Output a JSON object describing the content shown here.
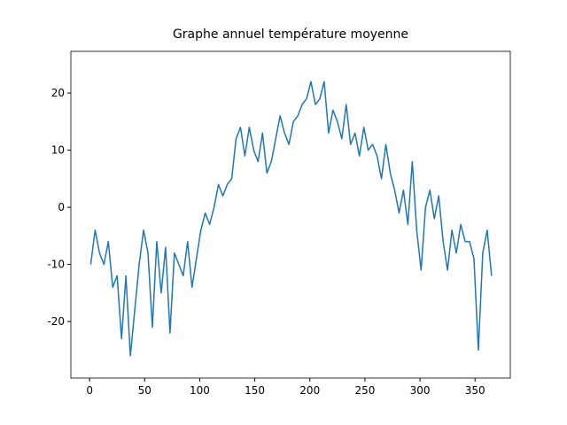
{
  "chart_data": {
    "type": "line",
    "title": "Graphe annuel température moyenne",
    "x": [
      1,
      5,
      9,
      13,
      17,
      21,
      25,
      29,
      33,
      37,
      41,
      45,
      49,
      53,
      57,
      61,
      65,
      69,
      73,
      77,
      81,
      85,
      89,
      93,
      97,
      101,
      105,
      109,
      113,
      117,
      121,
      125,
      129,
      133,
      137,
      141,
      145,
      149,
      153,
      157,
      161,
      165,
      169,
      173,
      177,
      181,
      185,
      189,
      193,
      197,
      201,
      205,
      209,
      213,
      217,
      221,
      225,
      229,
      233,
      237,
      241,
      245,
      249,
      253,
      257,
      261,
      265,
      269,
      273,
      277,
      281,
      285,
      289,
      293,
      297,
      301,
      305,
      309,
      313,
      317,
      321,
      325,
      329,
      333,
      337,
      341,
      345,
      349,
      353,
      357,
      361,
      365
    ],
    "series": [
      {
        "color": "#1f77b4",
        "values": [
          -10,
          -4,
          -8,
          -10,
          -6,
          -14,
          -12,
          -23,
          -12,
          -26,
          -18,
          -10,
          -4,
          -8,
          -21,
          -6,
          -15,
          -7,
          -22,
          -8,
          -10,
          -12,
          -6,
          -14,
          -9,
          -4,
          -1,
          -3,
          0,
          4,
          2,
          4,
          5,
          12,
          14,
          9,
          14,
          10,
          8,
          13,
          6,
          8,
          12,
          16,
          13,
          11,
          15,
          16,
          18,
          19,
          22,
          18,
          19,
          22,
          13,
          17,
          15,
          12,
          18,
          11,
          13,
          9,
          14,
          10,
          11,
          9,
          5,
          11,
          6,
          3,
          -1,
          3,
          -3,
          8,
          -4,
          -11,
          0,
          3,
          -2,
          2,
          -6,
          -11,
          -4,
          -8,
          -3,
          -6,
          -6,
          -9,
          -25,
          -8,
          -4,
          -12
        ]
      }
    ],
    "xlim": [
      -17,
      382
    ],
    "ylim": [
      -29.9,
      27.3
    ],
    "xticks": [
      0,
      50,
      100,
      150,
      200,
      250,
      300,
      350
    ],
    "yticks": [
      -20,
      -10,
      0,
      10,
      20
    ]
  }
}
